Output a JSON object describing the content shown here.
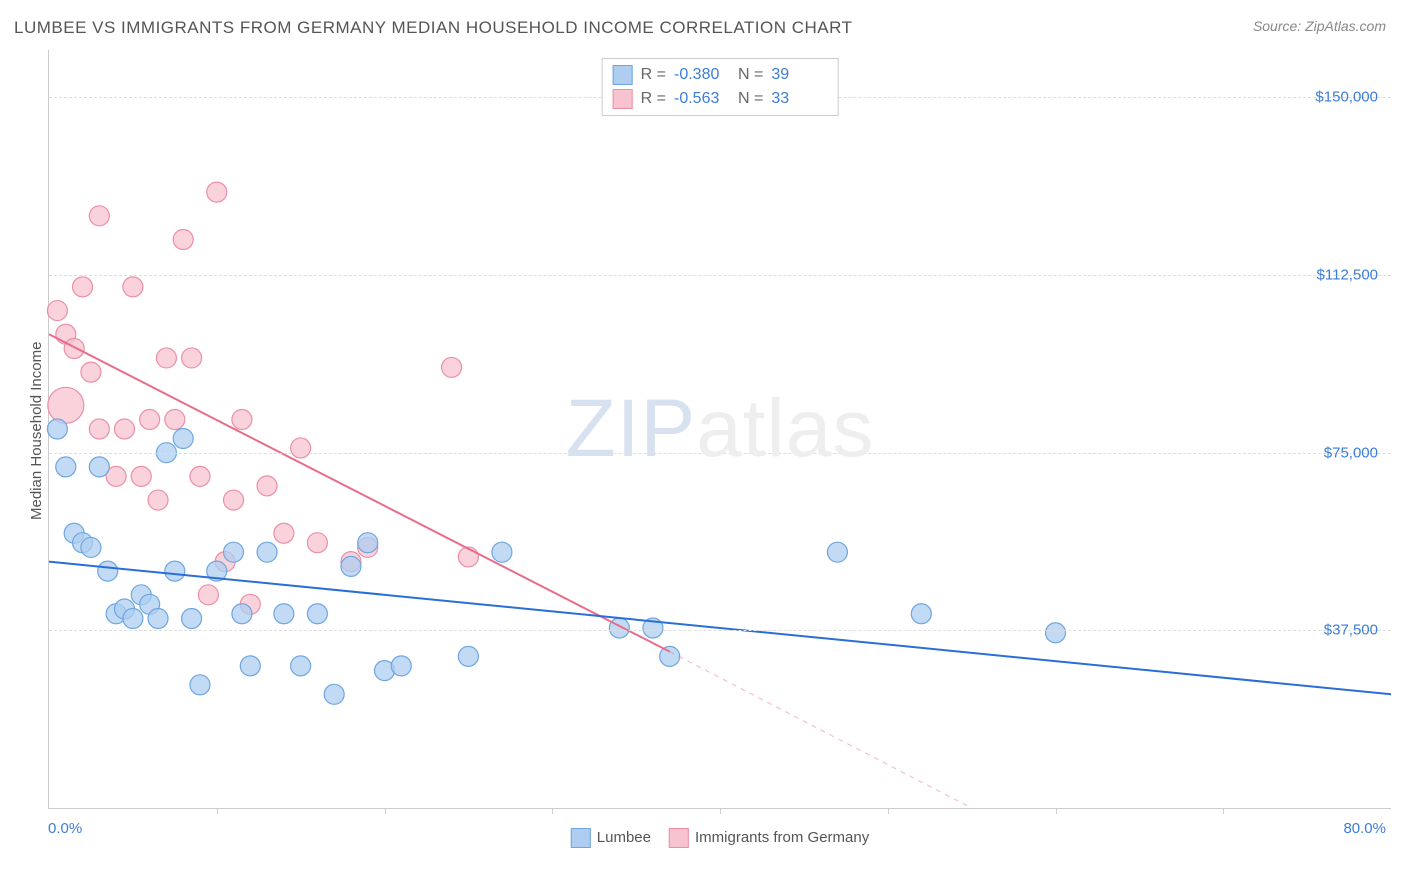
{
  "title": "LUMBEE VS IMMIGRANTS FROM GERMANY MEDIAN HOUSEHOLD INCOME CORRELATION CHART",
  "source": "Source: ZipAtlas.com",
  "watermark_a": "ZIP",
  "watermark_b": "atlas",
  "y_axis_label": "Median Household Income",
  "x_min_label": "0.0%",
  "x_max_label": "80.0%",
  "chart": {
    "type": "scatter",
    "xlim": [
      0,
      80
    ],
    "ylim": [
      0,
      160000
    ],
    "y_ticks": [
      {
        "v": 37500,
        "label": "$37,500"
      },
      {
        "v": 75000,
        "label": "$75,000"
      },
      {
        "v": 112500,
        "label": "$112,500"
      },
      {
        "v": 150000,
        "label": "$150,000"
      }
    ],
    "x_tick_step": 10,
    "background_color": "#ffffff",
    "grid_color": "#dddddd",
    "axis_color": "#cccccc",
    "tick_label_color": "#3b7dd8",
    "axis_label_color": "#555555",
    "title_color": "#555555",
    "title_fontsize": 17,
    "label_fontsize": 15,
    "marker_radius": 10,
    "marker_stroke_width": 1.2,
    "trend_line_width": 2,
    "series": [
      {
        "name": "Lumbee",
        "color_fill": "#aecdf0",
        "color_stroke": "#6ea6e0",
        "line_color": "#2a6fd6",
        "R": "-0.380",
        "N": "39",
        "trend": {
          "x1": 0,
          "y1": 52000,
          "x2": 80,
          "y2": 24000
        },
        "points": [
          {
            "x": 0.5,
            "y": 80000
          },
          {
            "x": 1.0,
            "y": 72000
          },
          {
            "x": 1.5,
            "y": 58000
          },
          {
            "x": 2.0,
            "y": 56000
          },
          {
            "x": 2.5,
            "y": 55000
          },
          {
            "x": 3.0,
            "y": 72000
          },
          {
            "x": 3.5,
            "y": 50000
          },
          {
            "x": 4.0,
            "y": 41000
          },
          {
            "x": 4.5,
            "y": 42000
          },
          {
            "x": 5.0,
            "y": 40000
          },
          {
            "x": 5.5,
            "y": 45000
          },
          {
            "x": 6.0,
            "y": 43000
          },
          {
            "x": 6.5,
            "y": 40000
          },
          {
            "x": 7.0,
            "y": 75000
          },
          {
            "x": 7.5,
            "y": 50000
          },
          {
            "x": 8.0,
            "y": 78000
          },
          {
            "x": 8.5,
            "y": 40000
          },
          {
            "x": 9.0,
            "y": 26000
          },
          {
            "x": 10.0,
            "y": 50000
          },
          {
            "x": 11.0,
            "y": 54000
          },
          {
            "x": 11.5,
            "y": 41000
          },
          {
            "x": 12.0,
            "y": 30000
          },
          {
            "x": 13.0,
            "y": 54000
          },
          {
            "x": 14.0,
            "y": 41000
          },
          {
            "x": 15.0,
            "y": 30000
          },
          {
            "x": 16.0,
            "y": 41000
          },
          {
            "x": 17.0,
            "y": 24000
          },
          {
            "x": 18.0,
            "y": 51000
          },
          {
            "x": 19.0,
            "y": 56000
          },
          {
            "x": 20.0,
            "y": 29000
          },
          {
            "x": 21.0,
            "y": 30000
          },
          {
            "x": 25.0,
            "y": 32000
          },
          {
            "x": 27.0,
            "y": 54000
          },
          {
            "x": 34.0,
            "y": 38000
          },
          {
            "x": 36.0,
            "y": 38000
          },
          {
            "x": 37.0,
            "y": 32000
          },
          {
            "x": 47.0,
            "y": 54000
          },
          {
            "x": 52.0,
            "y": 41000
          },
          {
            "x": 60.0,
            "y": 37000
          }
        ]
      },
      {
        "name": "Immigrants from Germany",
        "color_fill": "#f7c3cf",
        "color_stroke": "#ec8fa6",
        "line_color": "#e86d8a",
        "R": "-0.563",
        "N": "33",
        "trend": {
          "x1": 0,
          "y1": 100000,
          "x2": 55,
          "y2": 0
        },
        "dashed_ext": {
          "x1": 37,
          "y1": 33000,
          "x2": 55,
          "y2": 0
        },
        "points": [
          {
            "x": 0.5,
            "y": 105000
          },
          {
            "x": 1.0,
            "y": 100000
          },
          {
            "x": 1.0,
            "y": 85000,
            "r": 18
          },
          {
            "x": 1.5,
            "y": 97000
          },
          {
            "x": 2.0,
            "y": 110000
          },
          {
            "x": 2.5,
            "y": 92000
          },
          {
            "x": 3.0,
            "y": 80000
          },
          {
            "x": 3.0,
            "y": 125000
          },
          {
            "x": 4.0,
            "y": 70000
          },
          {
            "x": 4.5,
            "y": 80000
          },
          {
            "x": 5.0,
            "y": 110000
          },
          {
            "x": 5.5,
            "y": 70000
          },
          {
            "x": 6.0,
            "y": 82000
          },
          {
            "x": 6.5,
            "y": 65000
          },
          {
            "x": 7.0,
            "y": 95000
          },
          {
            "x": 7.5,
            "y": 82000
          },
          {
            "x": 8.0,
            "y": 120000
          },
          {
            "x": 8.5,
            "y": 95000
          },
          {
            "x": 9.0,
            "y": 70000
          },
          {
            "x": 9.5,
            "y": 45000
          },
          {
            "x": 10.0,
            "y": 130000
          },
          {
            "x": 10.5,
            "y": 52000
          },
          {
            "x": 11.0,
            "y": 65000
          },
          {
            "x": 11.5,
            "y": 82000
          },
          {
            "x": 12.0,
            "y": 43000
          },
          {
            "x": 13.0,
            "y": 68000
          },
          {
            "x": 14.0,
            "y": 58000
          },
          {
            "x": 15.0,
            "y": 76000
          },
          {
            "x": 16.0,
            "y": 56000
          },
          {
            "x": 18.0,
            "y": 52000
          },
          {
            "x": 19.0,
            "y": 55000
          },
          {
            "x": 24.0,
            "y": 93000
          },
          {
            "x": 25.0,
            "y": 53000
          }
        ]
      }
    ]
  },
  "legend_bottom": [
    {
      "label": "Lumbee",
      "fill": "#aecdf0",
      "stroke": "#6ea6e0"
    },
    {
      "label": "Immigrants from Germany",
      "fill": "#f7c3cf",
      "stroke": "#ec8fa6"
    }
  ]
}
